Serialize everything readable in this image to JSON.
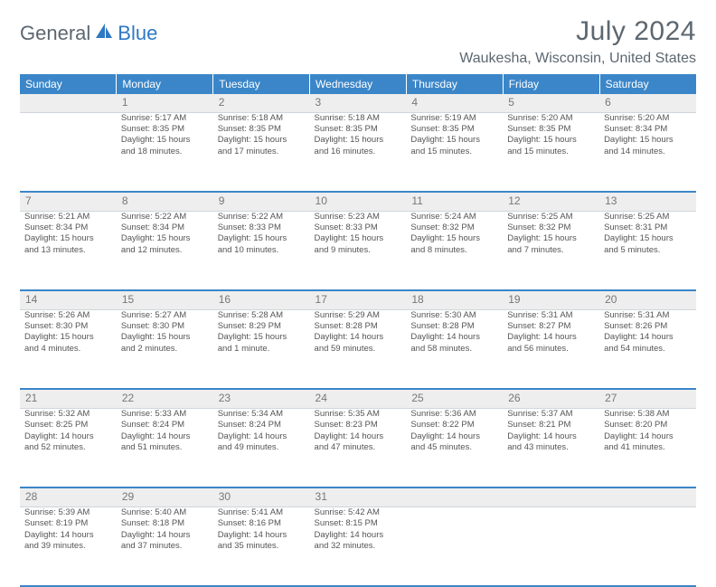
{
  "brand": {
    "a": "General",
    "b": "Blue"
  },
  "title": "July 2024",
  "location": "Waukesha, Wisconsin, United States",
  "colors": {
    "header_bg": "#3b86c8",
    "header_text": "#ffffff",
    "daynum_bg": "#eeeeee",
    "text": "#555555",
    "muted": "#5c6770"
  },
  "day_headers": [
    "Sunday",
    "Monday",
    "Tuesday",
    "Wednesday",
    "Thursday",
    "Friday",
    "Saturday"
  ],
  "weeks": [
    [
      {
        "n": "",
        "lines": []
      },
      {
        "n": "1",
        "lines": [
          "Sunrise: 5:17 AM",
          "Sunset: 8:35 PM",
          "Daylight: 15 hours",
          "and 18 minutes."
        ]
      },
      {
        "n": "2",
        "lines": [
          "Sunrise: 5:18 AM",
          "Sunset: 8:35 PM",
          "Daylight: 15 hours",
          "and 17 minutes."
        ]
      },
      {
        "n": "3",
        "lines": [
          "Sunrise: 5:18 AM",
          "Sunset: 8:35 PM",
          "Daylight: 15 hours",
          "and 16 minutes."
        ]
      },
      {
        "n": "4",
        "lines": [
          "Sunrise: 5:19 AM",
          "Sunset: 8:35 PM",
          "Daylight: 15 hours",
          "and 15 minutes."
        ]
      },
      {
        "n": "5",
        "lines": [
          "Sunrise: 5:20 AM",
          "Sunset: 8:35 PM",
          "Daylight: 15 hours",
          "and 15 minutes."
        ]
      },
      {
        "n": "6",
        "lines": [
          "Sunrise: 5:20 AM",
          "Sunset: 8:34 PM",
          "Daylight: 15 hours",
          "and 14 minutes."
        ]
      }
    ],
    [
      {
        "n": "7",
        "lines": [
          "Sunrise: 5:21 AM",
          "Sunset: 8:34 PM",
          "Daylight: 15 hours",
          "and 13 minutes."
        ]
      },
      {
        "n": "8",
        "lines": [
          "Sunrise: 5:22 AM",
          "Sunset: 8:34 PM",
          "Daylight: 15 hours",
          "and 12 minutes."
        ]
      },
      {
        "n": "9",
        "lines": [
          "Sunrise: 5:22 AM",
          "Sunset: 8:33 PM",
          "Daylight: 15 hours",
          "and 10 minutes."
        ]
      },
      {
        "n": "10",
        "lines": [
          "Sunrise: 5:23 AM",
          "Sunset: 8:33 PM",
          "Daylight: 15 hours",
          "and 9 minutes."
        ]
      },
      {
        "n": "11",
        "lines": [
          "Sunrise: 5:24 AM",
          "Sunset: 8:32 PM",
          "Daylight: 15 hours",
          "and 8 minutes."
        ]
      },
      {
        "n": "12",
        "lines": [
          "Sunrise: 5:25 AM",
          "Sunset: 8:32 PM",
          "Daylight: 15 hours",
          "and 7 minutes."
        ]
      },
      {
        "n": "13",
        "lines": [
          "Sunrise: 5:25 AM",
          "Sunset: 8:31 PM",
          "Daylight: 15 hours",
          "and 5 minutes."
        ]
      }
    ],
    [
      {
        "n": "14",
        "lines": [
          "Sunrise: 5:26 AM",
          "Sunset: 8:30 PM",
          "Daylight: 15 hours",
          "and 4 minutes."
        ]
      },
      {
        "n": "15",
        "lines": [
          "Sunrise: 5:27 AM",
          "Sunset: 8:30 PM",
          "Daylight: 15 hours",
          "and 2 minutes."
        ]
      },
      {
        "n": "16",
        "lines": [
          "Sunrise: 5:28 AM",
          "Sunset: 8:29 PM",
          "Daylight: 15 hours",
          "and 1 minute."
        ]
      },
      {
        "n": "17",
        "lines": [
          "Sunrise: 5:29 AM",
          "Sunset: 8:28 PM",
          "Daylight: 14 hours",
          "and 59 minutes."
        ]
      },
      {
        "n": "18",
        "lines": [
          "Sunrise: 5:30 AM",
          "Sunset: 8:28 PM",
          "Daylight: 14 hours",
          "and 58 minutes."
        ]
      },
      {
        "n": "19",
        "lines": [
          "Sunrise: 5:31 AM",
          "Sunset: 8:27 PM",
          "Daylight: 14 hours",
          "and 56 minutes."
        ]
      },
      {
        "n": "20",
        "lines": [
          "Sunrise: 5:31 AM",
          "Sunset: 8:26 PM",
          "Daylight: 14 hours",
          "and 54 minutes."
        ]
      }
    ],
    [
      {
        "n": "21",
        "lines": [
          "Sunrise: 5:32 AM",
          "Sunset: 8:25 PM",
          "Daylight: 14 hours",
          "and 52 minutes."
        ]
      },
      {
        "n": "22",
        "lines": [
          "Sunrise: 5:33 AM",
          "Sunset: 8:24 PM",
          "Daylight: 14 hours",
          "and 51 minutes."
        ]
      },
      {
        "n": "23",
        "lines": [
          "Sunrise: 5:34 AM",
          "Sunset: 8:24 PM",
          "Daylight: 14 hours",
          "and 49 minutes."
        ]
      },
      {
        "n": "24",
        "lines": [
          "Sunrise: 5:35 AM",
          "Sunset: 8:23 PM",
          "Daylight: 14 hours",
          "and 47 minutes."
        ]
      },
      {
        "n": "25",
        "lines": [
          "Sunrise: 5:36 AM",
          "Sunset: 8:22 PM",
          "Daylight: 14 hours",
          "and 45 minutes."
        ]
      },
      {
        "n": "26",
        "lines": [
          "Sunrise: 5:37 AM",
          "Sunset: 8:21 PM",
          "Daylight: 14 hours",
          "and 43 minutes."
        ]
      },
      {
        "n": "27",
        "lines": [
          "Sunrise: 5:38 AM",
          "Sunset: 8:20 PM",
          "Daylight: 14 hours",
          "and 41 minutes."
        ]
      }
    ],
    [
      {
        "n": "28",
        "lines": [
          "Sunrise: 5:39 AM",
          "Sunset: 8:19 PM",
          "Daylight: 14 hours",
          "and 39 minutes."
        ]
      },
      {
        "n": "29",
        "lines": [
          "Sunrise: 5:40 AM",
          "Sunset: 8:18 PM",
          "Daylight: 14 hours",
          "and 37 minutes."
        ]
      },
      {
        "n": "30",
        "lines": [
          "Sunrise: 5:41 AM",
          "Sunset: 8:16 PM",
          "Daylight: 14 hours",
          "and 35 minutes."
        ]
      },
      {
        "n": "31",
        "lines": [
          "Sunrise: 5:42 AM",
          "Sunset: 8:15 PM",
          "Daylight: 14 hours",
          "and 32 minutes."
        ]
      },
      {
        "n": "",
        "lines": []
      },
      {
        "n": "",
        "lines": []
      },
      {
        "n": "",
        "lines": []
      }
    ]
  ]
}
